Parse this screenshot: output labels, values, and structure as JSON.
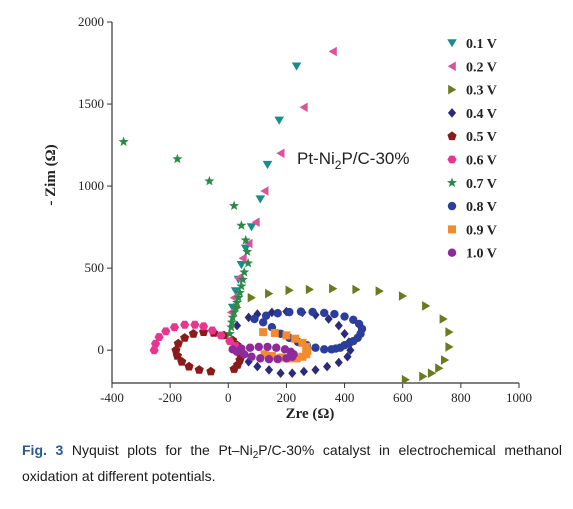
{
  "chart_data": {
    "type": "scatter",
    "title": "",
    "xlabel": "Zre (Ω)",
    "ylabel": "- Zim (Ω)",
    "xlim": [
      -400,
      1000
    ],
    "ylim": [
      -200,
      2000
    ],
    "x_ticks": [
      -400,
      -200,
      0,
      200,
      400,
      600,
      800,
      1000
    ],
    "y_ticks": [
      0,
      500,
      1000,
      1500,
      2000
    ],
    "grid": false,
    "legend_position": "top-right",
    "annotation": {
      "main": "Pt-Ni",
      "sub": "2",
      "rest": "P/C-30%"
    },
    "series": [
      {
        "name": "0.1 V",
        "marker": "triangle-down",
        "color": "#1a8c8c",
        "x": [
          15,
          25,
          35,
          45,
          60,
          80,
          110,
          135,
          175,
          235
        ],
        "y": [
          260,
          360,
          430,
          520,
          620,
          750,
          920,
          1130,
          1400,
          1730
        ]
      },
      {
        "name": "0.2 V",
        "marker": "triangle-left",
        "color": "#d9559b",
        "x": [
          10,
          20,
          35,
          50,
          70,
          95,
          125,
          180,
          260,
          360
        ],
        "y": [
          230,
          320,
          440,
          560,
          650,
          780,
          970,
          1200,
          1480,
          1820
        ]
      },
      {
        "name": "0.3 V",
        "marker": "triangle-right",
        "color": "#6b7a1f",
        "x": [
          30,
          80,
          140,
          210,
          280,
          360,
          440,
          520,
          600,
          680,
          740,
          760,
          760,
          745,
          725,
          700,
          670,
          610
        ],
        "y": [
          260,
          320,
          345,
          365,
          370,
          375,
          370,
          360,
          330,
          270,
          190,
          110,
          20,
          -60,
          -110,
          -140,
          -160,
          -180
        ]
      },
      {
        "name": "0.4 V",
        "marker": "diamond",
        "color": "#2b2b7a",
        "x": [
          30,
          70,
          100,
          150,
          200,
          255,
          300,
          345,
          380,
          400,
          415,
          420,
          410,
          380,
          340,
          300,
          260,
          220,
          180,
          140,
          100,
          70
        ],
        "y": [
          150,
          200,
          220,
          230,
          235,
          230,
          215,
          190,
          150,
          100,
          50,
          0,
          -40,
          -75,
          -100,
          -120,
          -130,
          -140,
          -140,
          -120,
          -100,
          -70
        ]
      },
      {
        "name": "0.5 V",
        "marker": "pentagon",
        "color": "#8b1a1a",
        "x": [
          -60,
          -100,
          -135,
          -160,
          -175,
          -180,
          -172,
          -150,
          -120,
          -85,
          -50,
          -15,
          15,
          30,
          40,
          42,
          40,
          32,
          20
        ],
        "y": [
          -130,
          -120,
          -100,
          -70,
          -35,
          0,
          40,
          75,
          100,
          110,
          105,
          90,
          60,
          30,
          0,
          -30,
          -60,
          -90,
          -115
        ]
      },
      {
        "name": "0.6 V",
        "marker": "hexagon",
        "color": "#e8368f",
        "x": [
          -255,
          -250,
          -238,
          -215,
          -185,
          -150,
          -115,
          -85,
          -55,
          -25,
          5,
          25,
          40
        ],
        "y": [
          0,
          40,
          80,
          115,
          140,
          155,
          155,
          145,
          120,
          90,
          55,
          25,
          0
        ]
      },
      {
        "name": "0.7 V",
        "marker": "star",
        "color": "#2a8a4a",
        "x": [
          -360,
          -175,
          -65,
          20,
          45,
          60,
          65,
          68,
          55,
          50,
          45,
          40,
          35,
          30,
          25,
          20,
          15,
          12,
          10,
          5
        ],
        "y": [
          1270,
          1165,
          1030,
          880,
          760,
          670,
          600,
          530,
          475,
          430,
          390,
          350,
          320,
          290,
          260,
          230,
          200,
          170,
          140,
          100
        ]
      },
      {
        "name": "0.8 V",
        "marker": "circle",
        "color": "#2b3f9a",
        "x": [
          90,
          130,
          170,
          210,
          250,
          290,
          330,
          365,
          400,
          430,
          450,
          460,
          455,
          445,
          430,
          415,
          400,
          385,
          370,
          355,
          330,
          300,
          270,
          240,
          210,
          180,
          150,
          120
        ],
        "y": [
          190,
          210,
          225,
          232,
          235,
          233,
          227,
          220,
          205,
          185,
          160,
          130,
          100,
          75,
          55,
          40,
          30,
          15,
          10,
          5,
          5,
          15,
          30,
          50,
          75,
          100,
          140,
          170
        ]
      },
      {
        "name": "0.9 V",
        "marker": "square",
        "color": "#f28a2e",
        "x": [
          120,
          160,
          200,
          230,
          255,
          268,
          272,
          268,
          255,
          235,
          210,
          180,
          150,
          125
        ],
        "y": [
          110,
          105,
          90,
          70,
          45,
          20,
          -5,
          -25,
          -40,
          -50,
          -50,
          -45,
          -35,
          -25
        ]
      },
      {
        "name": "1.0 V",
        "marker": "circle",
        "color": "#8e2a9a",
        "x": [
          15,
          45,
          75,
          105,
          135,
          165,
          195,
          215,
          225,
          220,
          200,
          170,
          140,
          110,
          80,
          55,
          30
        ],
        "y": [
          5,
          10,
          15,
          20,
          20,
          15,
          5,
          -10,
          -25,
          -40,
          -50,
          -55,
          -55,
          -50,
          -40,
          -25,
          -10
        ]
      }
    ]
  },
  "caption": {
    "label": "Fig. 3",
    "text_part1": "  Nyquist plots for the Pt–Ni",
    "sub": "2",
    "text_part2": "P/C-30% catalyst in electrochemical methanol oxidation at different potentials."
  }
}
